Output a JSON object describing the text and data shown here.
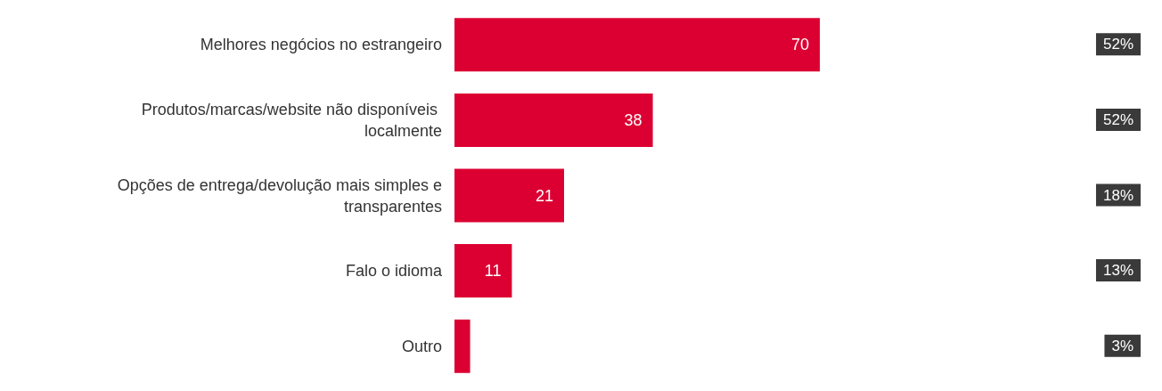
{
  "chart_data": {
    "type": "bar",
    "orientation": "horizontal",
    "categories": [
      "Melhores negócios no estrangeiro",
      "Produtos/marcas/website não disponíveis localmente",
      "Opções de entrega/devolução mais simples e transparentes",
      "Falo o idioma",
      "Outro"
    ],
    "values": [
      70,
      38,
      21,
      11,
      3
    ],
    "value_labels": [
      "70",
      "38",
      "21",
      "11",
      null
    ],
    "color": "#dc0032",
    "annotations": [
      "52%",
      "52%",
      "18%",
      "13%",
      "3%"
    ],
    "grid": false
  }
}
